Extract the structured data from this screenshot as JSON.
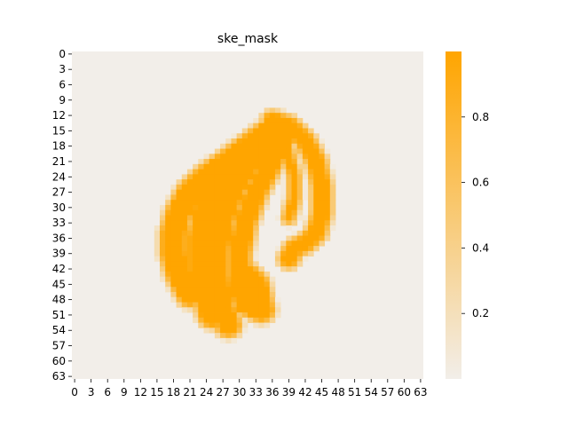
{
  "chart_data": {
    "type": "heatmap",
    "title": "ske_mask",
    "xlabel": "",
    "ylabel": "",
    "grid_size": [
      64,
      64
    ],
    "x_tick_labels": [
      "0",
      "3",
      "6",
      "9",
      "12",
      "15",
      "18",
      "21",
      "24",
      "27",
      "30",
      "33",
      "36",
      "39",
      "42",
      "45",
      "48",
      "51",
      "54",
      "57",
      "60",
      "63"
    ],
    "y_tick_labels": [
      "0",
      "3",
      "6",
      "9",
      "12",
      "15",
      "18",
      "21",
      "24",
      "27",
      "30",
      "33",
      "36",
      "39",
      "42",
      "45",
      "48",
      "51",
      "54",
      "57",
      "60",
      "63"
    ],
    "colorbar": {
      "ticks": [
        "0.2",
        "0.4",
        "0.6",
        "0.8"
      ],
      "tick_values": [
        0.2,
        0.4,
        0.6,
        0.8
      ],
      "range": [
        0,
        1
      ],
      "low_color": "#f2eee9",
      "high_color": "#ffa500"
    },
    "value_range": [
      0,
      1
    ],
    "strokes": [
      {
        "points": [
          [
            37,
            14
          ],
          [
            33,
            17
          ],
          [
            28,
            21
          ],
          [
            24,
            24
          ],
          [
            21,
            27
          ],
          [
            19,
            31
          ],
          [
            18,
            35
          ],
          [
            18,
            39
          ],
          [
            19,
            43
          ],
          [
            21,
            47
          ]
        ],
        "width": 2.6
      },
      {
        "points": [
          [
            35,
            16
          ],
          [
            30,
            20
          ],
          [
            26,
            25
          ],
          [
            24,
            30
          ],
          [
            23,
            36
          ],
          [
            23,
            42
          ],
          [
            24,
            47
          ],
          [
            25,
            51
          ]
        ],
        "width": 2.7
      },
      {
        "points": [
          [
            36,
            16
          ],
          [
            32,
            21
          ],
          [
            29,
            26
          ],
          [
            27,
            32
          ],
          [
            26,
            38
          ],
          [
            26,
            44
          ],
          [
            27,
            50
          ],
          [
            28,
            53
          ]
        ],
        "width": 2.5
      },
      {
        "points": [
          [
            38,
            16
          ],
          [
            36,
            21
          ],
          [
            33,
            27
          ],
          [
            31,
            33
          ],
          [
            30,
            39
          ],
          [
            30,
            45
          ],
          [
            31,
            49
          ]
        ],
        "width": 2.3
      },
      {
        "points": [
          [
            36,
            13
          ],
          [
            39,
            14
          ],
          [
            42,
            17
          ],
          [
            44,
            21
          ],
          [
            45,
            26
          ],
          [
            45,
            31
          ],
          [
            44,
            35
          ],
          [
            42,
            37
          ],
          [
            40,
            38
          ],
          [
            39,
            40
          ]
        ],
        "width": 2.0
      },
      {
        "points": [
          [
            38,
            16
          ],
          [
            39,
            20
          ],
          [
            40,
            24
          ],
          [
            40,
            28
          ],
          [
            39,
            32
          ]
        ],
        "width": 1.3
      },
      {
        "points": [
          [
            30,
            44
          ],
          [
            31,
            47
          ],
          [
            32,
            49
          ],
          [
            34,
            50
          ],
          [
            33,
            45
          ],
          [
            31,
            43
          ]
        ],
        "width": 2.6
      }
    ]
  }
}
